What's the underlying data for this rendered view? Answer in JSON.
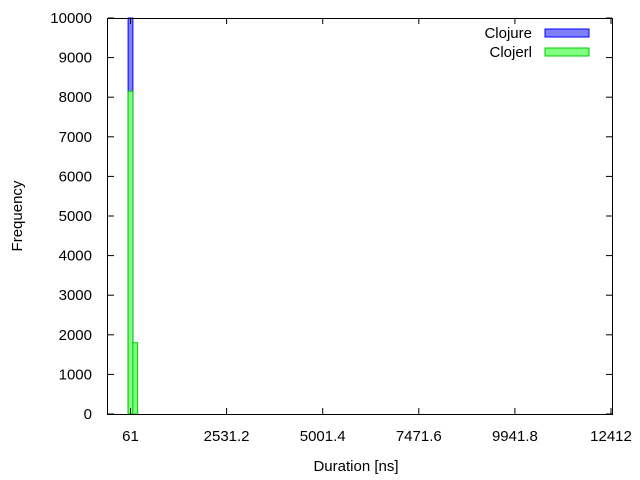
{
  "chart_data": {
    "type": "bar",
    "title": "",
    "xlabel": "Duration [ns]",
    "ylabel": "Frequency",
    "xlim": [
      61,
      12412
    ],
    "ylim": [
      0,
      10000
    ],
    "x_ticks": [
      61,
      2531.2,
      5001.4,
      7471.6,
      9941.8,
      12412
    ],
    "x_tick_labels": [
      "61",
      "2531.2",
      "5001.4",
      "7471.6",
      "9941.8",
      "12412"
    ],
    "y_ticks": [
      0,
      1000,
      2000,
      3000,
      4000,
      5000,
      6000,
      7000,
      8000,
      9000,
      10000
    ],
    "y_tick_labels": [
      "0",
      "1000",
      "2000",
      "3000",
      "4000",
      "5000",
      "6000",
      "7000",
      "8000",
      "9000",
      "10000"
    ],
    "grid": false,
    "legend_position": "top-right",
    "bin_width": 61,
    "series": [
      {
        "name": "Clojure",
        "color": "#8080ff",
        "stroke": "#0000ff",
        "bins": [
          {
            "x": 61,
            "value": 10000
          }
        ]
      },
      {
        "name": "Clojerl",
        "color": "#80ff80",
        "stroke": "#00cc00",
        "bins": [
          {
            "x": 61,
            "value": 8150
          },
          {
            "x": 183,
            "value": 1800
          }
        ]
      }
    ]
  }
}
